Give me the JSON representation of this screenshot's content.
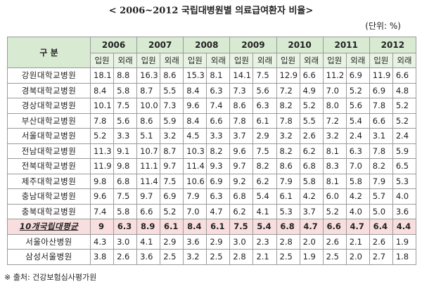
{
  "title": "< 2006~2012 국립대병원별 의료급여환자 비율>",
  "unit": "(단위: %)",
  "table": {
    "category_header": "구 분",
    "years": [
      "2006",
      "2007",
      "2008",
      "2009",
      "2010",
      "2011",
      "2012"
    ],
    "sub_headers": [
      "입원",
      "외래"
    ],
    "rows": [
      {
        "name": "강원대학교병원",
        "values": [
          "18.1",
          "8.8",
          "16.3",
          "8.6",
          "15.3",
          "8.1",
          "14.1",
          "7.5",
          "12.9",
          "6.6",
          "11.2",
          "6.9",
          "11.9",
          "6.6"
        ]
      },
      {
        "name": "경북대학교병원",
        "values": [
          "8.4",
          "5.8",
          "8.7",
          "5.5",
          "8.4",
          "6.3",
          "7.3",
          "5.6",
          "7.2",
          "4.9",
          "7.0",
          "5.2",
          "6.9",
          "4.8"
        ]
      },
      {
        "name": "경상대학교병원",
        "values": [
          "10.1",
          "7.5",
          "10.0",
          "7.3",
          "9.6",
          "7.4",
          "8.6",
          "6.3",
          "8.2",
          "5.2",
          "8.0",
          "5.6",
          "7.8",
          "5.2"
        ]
      },
      {
        "name": "부산대학교병원",
        "values": [
          "7.8",
          "5.6",
          "8.6",
          "5.9",
          "8.4",
          "6.6",
          "7.8",
          "6.1",
          "7.8",
          "5.5",
          "7.2",
          "5.4",
          "6.6",
          "5.2"
        ]
      },
      {
        "name": "서울대학교병원",
        "values": [
          "5.2",
          "3.3",
          "5.1",
          "3.2",
          "4.5",
          "3.3",
          "3.7",
          "2.9",
          "3.2",
          "2.6",
          "3.2",
          "2.4",
          "3.1",
          "2.4"
        ]
      },
      {
        "name": "전남대학교병원",
        "values": [
          "11.3",
          "9.1",
          "10.7",
          "8.7",
          "10.3",
          "8.2",
          "9.6",
          "7.5",
          "8.2",
          "6.2",
          "8.1",
          "6.3",
          "7.8",
          "5.9"
        ]
      },
      {
        "name": "전북대학교병원",
        "values": [
          "11.9",
          "9.8",
          "11.1",
          "9.7",
          "11.4",
          "9.3",
          "9.7",
          "8.2",
          "8.6",
          "6.8",
          "8.3",
          "7.0",
          "8.2",
          "6.5"
        ]
      },
      {
        "name": "제주대학교병원",
        "values": [
          "9.8",
          "6.8",
          "11.4",
          "7.5",
          "10.6",
          "6.9",
          "9.2",
          "6.2",
          "7.9",
          "5.8",
          "8.1",
          "5.8",
          "7.9",
          "5.3"
        ]
      },
      {
        "name": "충남대학교병원",
        "values": [
          "9.6",
          "7.5",
          "9.7",
          "6.9",
          "7.9",
          "6.3",
          "6.8",
          "5.4",
          "6.1",
          "4.2",
          "6.0",
          "4.2",
          "5.7",
          "4.0"
        ]
      },
      {
        "name": "충북대학교병원",
        "values": [
          "7.4",
          "5.8",
          "6.6",
          "5.2",
          "7.0",
          "4.7",
          "6.2",
          "4.1",
          "5.3",
          "3.7",
          "5.2",
          "4.0",
          "5.0",
          "3.6"
        ]
      }
    ],
    "average": {
      "name": "10개국립대평균",
      "values": [
        "9",
        "6.3",
        "8.9",
        "6.1",
        "8.4",
        "6.1",
        "7.5",
        "5.4",
        "6.8",
        "4.7",
        "6.6",
        "4.7",
        "6.4",
        "4.4"
      ]
    },
    "others": [
      {
        "name": "서울아산병원",
        "values": [
          "4.3",
          "3.0",
          "4.1",
          "2.9",
          "3.6",
          "2.9",
          "3.0",
          "2.3",
          "2.8",
          "2.0",
          "2.6",
          "2.1",
          "2.6",
          "1.9"
        ]
      },
      {
        "name": "삼성서울병원",
        "values": [
          "3.8",
          "2.6",
          "3.6",
          "2.5",
          "3.2",
          "2.5",
          "2.8",
          "2.1",
          "2.5",
          "1.9",
          "2.5",
          "2.0",
          "2.7",
          "1.8"
        ]
      }
    ]
  },
  "source": "※ 출처: 건강보험심사평가원"
}
